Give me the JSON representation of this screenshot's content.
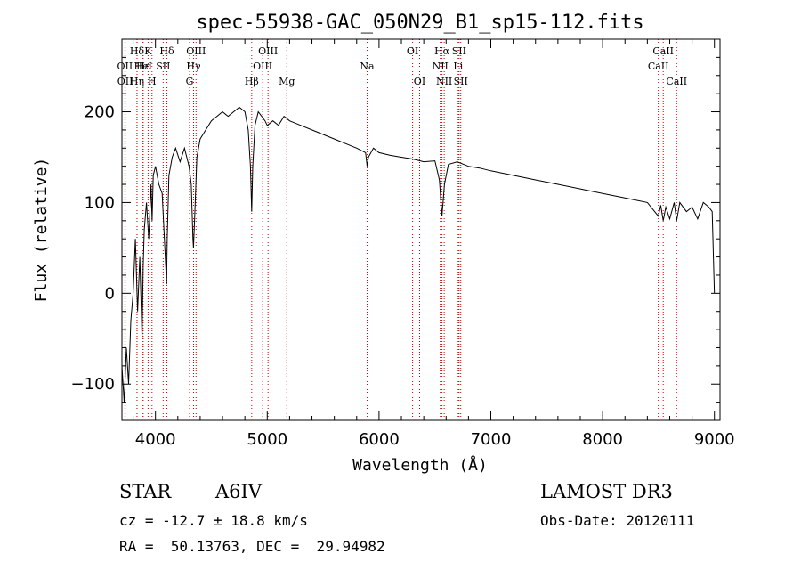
{
  "chart_data": {
    "type": "line",
    "title": "spec-55938-GAC_050N29_B1_sp15-112.fits",
    "xlabel": "Wavelength (Å)",
    "ylabel": "Flux (relative)",
    "xlim": [
      3700,
      9050
    ],
    "ylim": [
      -140,
      280
    ],
    "xticks": [
      4000,
      5000,
      6000,
      7000,
      8000,
      9000
    ],
    "yticks": [
      -100,
      0,
      100,
      200
    ],
    "grid": false,
    "series": [
      {
        "name": "spectrum",
        "x": [
          3700,
          3720,
          3740,
          3760,
          3780,
          3800,
          3820,
          3840,
          3860,
          3880,
          3890,
          3900,
          3920,
          3940,
          3960,
          3970,
          3980,
          4000,
          4030,
          4060,
          4080,
          4100,
          4105,
          4120,
          4150,
          4180,
          4220,
          4260,
          4300,
          4320,
          4335,
          4340,
          4350,
          4370,
          4400,
          4450,
          4500,
          4550,
          4600,
          4650,
          4700,
          4750,
          4800,
          4830,
          4850,
          4861,
          4870,
          4890,
          4920,
          4950,
          4980,
          5000,
          5050,
          5100,
          5150,
          5200,
          5300,
          5400,
          5500,
          5600,
          5700,
          5800,
          5880,
          5893,
          5905,
          5950,
          6000,
          6100,
          6200,
          6300,
          6400,
          6500,
          6540,
          6563,
          6585,
          6620,
          6700,
          6800,
          6900,
          7000,
          7200,
          7400,
          7600,
          7800,
          8000,
          8200,
          8400,
          8498,
          8520,
          8542,
          8565,
          8600,
          8640,
          8662,
          8690,
          8750,
          8800,
          8850,
          8900,
          8950,
          8980,
          9000
        ],
        "y": [
          -80,
          -120,
          -60,
          -100,
          -30,
          0,
          60,
          -20,
          40,
          -50,
          30,
          70,
          100,
          60,
          120,
          80,
          130,
          140,
          120,
          110,
          60,
          10,
          60,
          130,
          150,
          160,
          145,
          160,
          140,
          120,
          60,
          50,
          80,
          150,
          170,
          180,
          190,
          195,
          200,
          195,
          200,
          205,
          200,
          180,
          140,
          90,
          140,
          185,
          200,
          195,
          190,
          185,
          190,
          185,
          195,
          190,
          185,
          180,
          175,
          170,
          165,
          160,
          155,
          140,
          150,
          160,
          155,
          152,
          150,
          148,
          145,
          146,
          125,
          85,
          120,
          142,
          145,
          140,
          138,
          135,
          130,
          125,
          120,
          115,
          110,
          105,
          100,
          85,
          97,
          80,
          95,
          82,
          100,
          80,
          100,
          90,
          95,
          82,
          100,
          95,
          90,
          0
        ]
      }
    ],
    "lines": [
      {
        "label": "Hδ",
        "row": 1,
        "x": 3835
      },
      {
        "label": "OII",
        "row": 2,
        "x": 3727
      },
      {
        "label": "OII",
        "row": 3,
        "x": 3729
      },
      {
        "label": "Hε",
        "row": 2,
        "x": 3889
      },
      {
        "label": "Hη",
        "row": 3,
        "x": 3835
      },
      {
        "label": "K",
        "row": 1,
        "x": 3934
      },
      {
        "label": "HeI",
        "row": 2,
        "x": 3889
      },
      {
        "label": "H",
        "row": 3,
        "x": 3969
      },
      {
        "label": "Hδ",
        "row": 1,
        "x": 4102
      },
      {
        "label": "SII",
        "row": 2,
        "x": 4069
      },
      {
        "label": "OIII",
        "row": 1,
        "x": 4363
      },
      {
        "label": "Hγ",
        "row": 2,
        "x": 4341
      },
      {
        "label": "G",
        "row": 3,
        "x": 4305
      },
      {
        "label": "Hβ",
        "row": 3,
        "x": 4861
      },
      {
        "label": "OIII",
        "row": 1,
        "x": 5007
      },
      {
        "label": "OIII",
        "row": 2,
        "x": 4959
      },
      {
        "label": "Mg",
        "row": 3,
        "x": 5175
      },
      {
        "label": "Na",
        "row": 2,
        "x": 5893
      },
      {
        "label": "OI",
        "row": 1,
        "x": 6300
      },
      {
        "label": "OI",
        "row": 3,
        "x": 6363
      },
      {
        "label": "Hα",
        "row": 1,
        "x": 6563
      },
      {
        "label": "NII",
        "row": 2,
        "x": 6548
      },
      {
        "label": "NII",
        "row": 3,
        "x": 6583
      },
      {
        "label": "SII",
        "row": 1,
        "x": 6716
      },
      {
        "label": "Li",
        "row": 2,
        "x": 6708
      },
      {
        "label": "SII",
        "row": 3,
        "x": 6731
      },
      {
        "label": "CaII",
        "row": 1,
        "x": 8542
      },
      {
        "label": "CaII",
        "row": 2,
        "x": 8498
      },
      {
        "label": "CaII",
        "row": 3,
        "x": 8662
      }
    ]
  },
  "info": {
    "class_label": "STAR",
    "subclass": "A6IV",
    "survey": "LAMOST DR3",
    "cz": "cz = -12.7 ± 18.8 km/s",
    "obs_date": "Obs-Date: 20120111",
    "coords": "RA =  50.13763, DEC =  29.94982"
  }
}
